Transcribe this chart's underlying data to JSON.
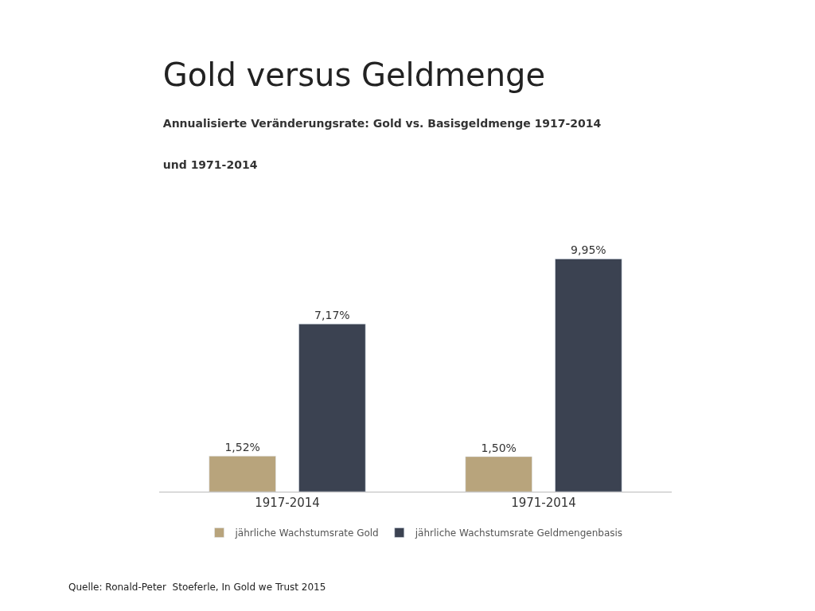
{
  "chart_data": {
    "type": "bar",
    "title": "Gold versus Geldmenge",
    "subtitle": "Annualisierte Veränderungsrate: Gold vs. Basisgeldmenge 1917-2014 und 1971-2014",
    "categories": [
      "1917-2014",
      "1971-2014"
    ],
    "series": [
      {
        "name": "jährliche Wachstumsrate Gold",
        "color": "#b8a47c",
        "values": [
          1.52,
          1.5
        ],
        "value_labels": [
          "1,52%",
          "1,50%"
        ]
      },
      {
        "name": "jährliche Wachstumsrate Geldmengenbasis",
        "color": "#3b4251",
        "values": [
          7.17,
          9.95
        ],
        "value_labels": [
          "7,17%",
          "9,95%"
        ]
      }
    ],
    "legend": "bottom",
    "annotations": [
      "Quelle: Ronald-Peter  Stoeferle, In Gold we Trust 2015"
    ]
  }
}
